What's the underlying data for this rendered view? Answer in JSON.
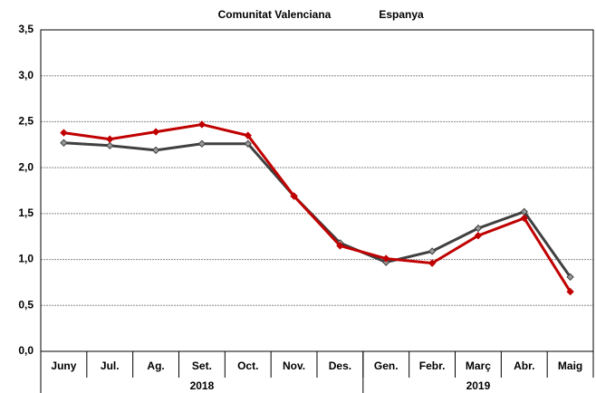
{
  "chart_data": {
    "type": "line",
    "categories": [
      "Juny",
      "Jul.",
      "Ag.",
      "Set.",
      "Oct.",
      "Nov.",
      "Des.",
      "Gen.",
      "Febr.",
      "Març",
      "Abr.",
      "Maig"
    ],
    "year_groups": [
      "2018",
      "2019"
    ],
    "series": [
      {
        "name": "Comunitat Valenciana",
        "color": "#c00000",
        "values": [
          2.38,
          2.31,
          2.39,
          2.47,
          2.35,
          1.69,
          1.15,
          1.01,
          0.96,
          1.26,
          1.45,
          0.65
        ]
      },
      {
        "name": "Espanya",
        "color": "#404040",
        "values": [
          2.27,
          2.24,
          2.19,
          2.26,
          2.26,
          1.69,
          1.18,
          0.97,
          1.09,
          1.34,
          1.52,
          0.81
        ]
      }
    ],
    "ylim": [
      0,
      3.5
    ],
    "yticks": [
      {
        "value": 0,
        "label": "0,0"
      },
      {
        "value": 0.5,
        "label": "0,5"
      },
      {
        "value": 1,
        "label": "1,0"
      },
      {
        "value": 1.5,
        "label": "1,5"
      },
      {
        "value": 2,
        "label": "2,0"
      },
      {
        "value": 2.5,
        "label": "2,5"
      },
      {
        "value": 3,
        "label": "3,0"
      },
      {
        "value": 3.5,
        "label": "3,5"
      }
    ],
    "grid": true
  }
}
